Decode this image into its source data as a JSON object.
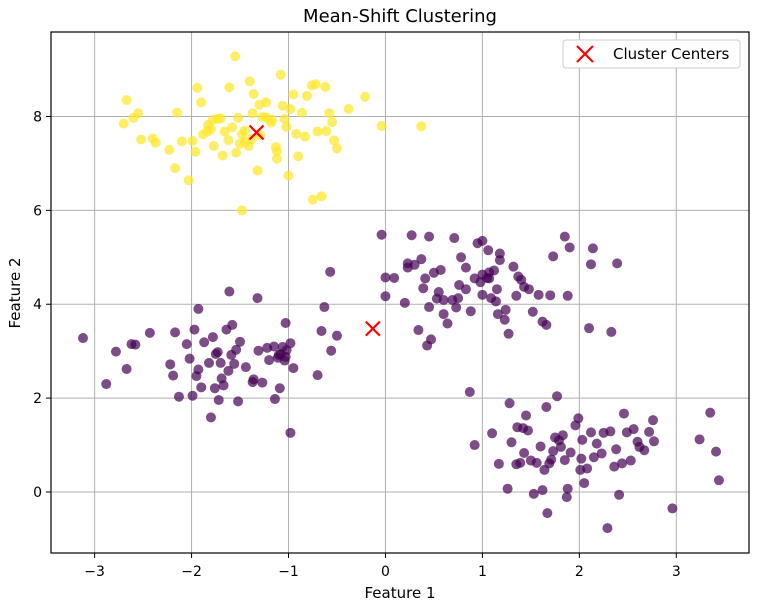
{
  "chart_data": {
    "type": "scatter",
    "title": "Mean-Shift Clustering",
    "xlabel": "Feature 1",
    "ylabel": "Feature 2",
    "xlim": [
      -3.45,
      3.75
    ],
    "ylim": [
      -1.3,
      9.8
    ],
    "xticks": [
      -3,
      -2,
      -1,
      0,
      1,
      2,
      3
    ],
    "yticks": [
      0,
      2,
      4,
      6,
      8
    ],
    "grid": true,
    "legend_location": "top-right",
    "legend": [
      {
        "label": "Cluster Centers",
        "marker": "x",
        "color": "#ff0000"
      }
    ],
    "colors": {
      "cluster_0": "#440154",
      "cluster_1": "#fde725",
      "centers": "#ff0000",
      "grid": "#b0b0b0"
    },
    "series": [
      {
        "cluster": 0,
        "points": [
          [
            -3.12,
            3.28
          ],
          [
            -2.88,
            2.3
          ],
          [
            -2.78,
            2.99
          ],
          [
            -2.67,
            2.62
          ],
          [
            -2.62,
            3.15
          ],
          [
            -2.58,
            3.14
          ],
          [
            -2.43,
            3.39
          ],
          [
            -2.22,
            2.72
          ],
          [
            -2.19,
            2.48
          ],
          [
            -2.17,
            3.4
          ],
          [
            -2.13,
            2.03
          ],
          [
            -2.05,
            3.15
          ],
          [
            -2.02,
            2.84
          ],
          [
            -1.99,
            2.05
          ],
          [
            -1.97,
            3.46
          ],
          [
            -1.95,
            2.47
          ],
          [
            -1.93,
            3.9
          ],
          [
            -1.93,
            2.61
          ],
          [
            -1.9,
            2.23
          ],
          [
            -1.87,
            3.19
          ],
          [
            -1.82,
            2.75
          ],
          [
            -1.8,
            1.59
          ],
          [
            -1.78,
            3.3
          ],
          [
            -1.76,
            2.21
          ],
          [
            -1.75,
            2.94
          ],
          [
            -1.73,
            2.98
          ],
          [
            -1.72,
            1.96
          ],
          [
            -1.7,
            2.75
          ],
          [
            -1.69,
            2.42
          ],
          [
            -1.67,
            2.27
          ],
          [
            -1.64,
            3.46
          ],
          [
            -1.62,
            2.58
          ],
          [
            -1.61,
            4.27
          ],
          [
            -1.59,
            2.92
          ],
          [
            -1.58,
            3.56
          ],
          [
            -1.56,
            2.73
          ],
          [
            -1.54,
            3.03
          ],
          [
            -1.52,
            1.93
          ],
          [
            -1.5,
            3.2
          ],
          [
            -1.44,
            2.66
          ],
          [
            -1.37,
            2.34
          ],
          [
            -1.36,
            2.4
          ],
          [
            -1.32,
            4.13
          ],
          [
            -1.31,
            3.01
          ],
          [
            -1.27,
            2.33
          ],
          [
            -1.22,
            3.07
          ],
          [
            -1.2,
            2.81
          ],
          [
            -1.15,
            3.1
          ],
          [
            -1.14,
            1.98
          ],
          [
            -1.11,
            2.86
          ],
          [
            -1.1,
            2.92
          ],
          [
            -1.09,
            2.21
          ],
          [
            -1.08,
            2.94
          ],
          [
            -1.06,
            3.09
          ],
          [
            -1.04,
            2.8
          ],
          [
            -1.03,
            2.88
          ],
          [
            -1.03,
            3.6
          ],
          [
            -1.02,
            3.02
          ],
          [
            -0.98,
            3.17
          ],
          [
            -0.98,
            1.26
          ],
          [
            -0.95,
            2.64
          ],
          [
            -0.7,
            2.49
          ],
          [
            -0.66,
            3.43
          ],
          [
            -0.63,
            3.94
          ],
          [
            -0.57,
            4.69
          ],
          [
            -0.56,
            3.01
          ],
          [
            -0.5,
            3.33
          ],
          [
            -0.04,
            5.48
          ],
          [
            0.0,
            4.57
          ],
          [
            0.0,
            4.17
          ],
          [
            0.09,
            4.56
          ],
          [
            0.2,
            4.03
          ],
          [
            0.23,
            4.87
          ],
          [
            0.23,
            4.78
          ],
          [
            0.27,
            5.47
          ],
          [
            0.3,
            4.84
          ],
          [
            0.34,
            3.45
          ],
          [
            0.37,
            4.96
          ],
          [
            0.39,
            4.34
          ],
          [
            0.41,
            4.55
          ],
          [
            0.43,
            3.12
          ],
          [
            0.45,
            5.44
          ],
          [
            0.45,
            3.94
          ],
          [
            0.47,
            3.25
          ],
          [
            0.5,
            4.67
          ],
          [
            0.53,
            4.12
          ],
          [
            0.55,
            4.26
          ],
          [
            0.57,
            4.73
          ],
          [
            0.6,
            3.79
          ],
          [
            0.6,
            4.09
          ],
          [
            0.64,
            3.59
          ],
          [
            0.69,
            4.09
          ],
          [
            0.71,
            5.41
          ],
          [
            0.73,
            3.93
          ],
          [
            0.75,
            4.13
          ],
          [
            0.76,
            4.41
          ],
          [
            0.78,
            5.0
          ],
          [
            0.83,
            4.78
          ],
          [
            0.83,
            4.32
          ],
          [
            0.88,
            3.85
          ],
          [
            0.92,
            4.55
          ],
          [
            0.95,
            5.3
          ],
          [
            0.98,
            4.47
          ],
          [
            1.0,
            4.63
          ],
          [
            1.0,
            5.35
          ],
          [
            1.0,
            4.2
          ],
          [
            1.05,
            4.56
          ],
          [
            1.06,
            5.15
          ],
          [
            1.07,
            4.55
          ],
          [
            1.07,
            4.68
          ],
          [
            1.09,
            4.13
          ],
          [
            1.12,
            4.72
          ],
          [
            1.14,
            4.06
          ],
          [
            1.15,
            4.32
          ],
          [
            1.16,
            3.79
          ],
          [
            1.18,
            5.08
          ],
          [
            1.18,
            4.94
          ],
          [
            1.23,
            3.67
          ],
          [
            1.24,
            3.88
          ],
          [
            1.27,
            3.37
          ],
          [
            1.32,
            4.8
          ],
          [
            1.35,
            4.18
          ],
          [
            1.37,
            4.59
          ],
          [
            1.4,
            4.52
          ],
          [
            1.43,
            4.37
          ],
          [
            1.48,
            4.32
          ],
          [
            1.52,
            3.84
          ],
          [
            1.58,
            4.2
          ],
          [
            1.62,
            3.63
          ],
          [
            1.66,
            3.56
          ],
          [
            1.7,
            4.19
          ],
          [
            1.73,
            5.02
          ],
          [
            1.85,
            5.44
          ],
          [
            1.88,
            4.18
          ],
          [
            1.9,
            5.21
          ],
          [
            2.1,
            3.49
          ],
          [
            2.12,
            4.85
          ],
          [
            2.14,
            5.19
          ],
          [
            2.33,
            3.41
          ],
          [
            2.39,
            4.87
          ],
          [
            0.87,
            2.13
          ],
          [
            0.92,
            1.0
          ],
          [
            1.1,
            1.25
          ],
          [
            1.17,
            0.6
          ],
          [
            1.26,
            0.07
          ],
          [
            1.28,
            1.89
          ],
          [
            1.3,
            1.06
          ],
          [
            1.35,
            0.59
          ],
          [
            1.36,
            1.38
          ],
          [
            1.39,
            0.62
          ],
          [
            1.42,
            1.36
          ],
          [
            1.43,
            0.83
          ],
          [
            1.45,
            1.63
          ],
          [
            1.47,
            1.31
          ],
          [
            1.5,
            0.67
          ],
          [
            1.53,
            -0.04
          ],
          [
            1.56,
            0.62
          ],
          [
            1.6,
            0.97
          ],
          [
            1.62,
            0.04
          ],
          [
            1.64,
            0.47
          ],
          [
            1.66,
            1.81
          ],
          [
            1.67,
            -0.45
          ],
          [
            1.69,
            0.61
          ],
          [
            1.71,
            0.69
          ],
          [
            1.73,
            0.87
          ],
          [
            1.75,
            1.16
          ],
          [
            1.77,
            2.04
          ],
          [
            1.79,
            1.1
          ],
          [
            1.81,
            0.96
          ],
          [
            1.83,
            1.21
          ],
          [
            1.85,
            0.68
          ],
          [
            1.87,
            -0.11
          ],
          [
            1.88,
            0.07
          ],
          [
            1.91,
            0.84
          ],
          [
            1.96,
            1.42
          ],
          [
            1.99,
            1.57
          ],
          [
            2.01,
            0.47
          ],
          [
            2.02,
            0.71
          ],
          [
            2.03,
            1.11
          ],
          [
            2.05,
            0.19
          ],
          [
            2.08,
            0.5
          ],
          [
            2.12,
            1.27
          ],
          [
            2.15,
            0.74
          ],
          [
            2.18,
            1.03
          ],
          [
            2.23,
            0.82
          ],
          [
            2.25,
            1.26
          ],
          [
            2.29,
            -0.77
          ],
          [
            2.32,
            1.29
          ],
          [
            2.36,
            0.54
          ],
          [
            2.38,
            0.91
          ],
          [
            2.41,
            -0.06
          ],
          [
            2.44,
            0.61
          ],
          [
            2.46,
            1.67
          ],
          [
            2.49,
            1.27
          ],
          [
            2.53,
            0.67
          ],
          [
            2.56,
            1.34
          ],
          [
            2.6,
            1.07
          ],
          [
            2.62,
            0.96
          ],
          [
            2.67,
            0.89
          ],
          [
            2.72,
            1.28
          ],
          [
            2.76,
            1.53
          ],
          [
            2.77,
            1.08
          ],
          [
            2.96,
            -0.35
          ],
          [
            3.24,
            1.12
          ],
          [
            3.35,
            1.69
          ],
          [
            3.41,
            0.86
          ],
          [
            3.44,
            0.25
          ]
        ]
      },
      {
        "cluster": 1,
        "points": [
          [
            -2.67,
            8.35
          ],
          [
            -2.6,
            7.97
          ],
          [
            -2.52,
            7.51
          ],
          [
            -2.17,
            6.9
          ],
          [
            -2.1,
            7.47
          ],
          [
            -2.03,
            6.64
          ],
          [
            -1.94,
            8.61
          ],
          [
            -1.9,
            8.3
          ],
          [
            -1.84,
            7.68
          ],
          [
            -1.8,
            7.73
          ],
          [
            -1.77,
            7.37
          ],
          [
            -1.73,
            7.95
          ],
          [
            -1.68,
            7.17
          ],
          [
            -1.61,
            8.62
          ],
          [
            -1.55,
            9.28
          ],
          [
            -1.52,
            7.97
          ],
          [
            -1.48,
            7.62
          ],
          [
            -1.45,
            7.46
          ],
          [
            -1.4,
            8.75
          ],
          [
            -1.37,
            8.07
          ],
          [
            -1.32,
            6.85
          ],
          [
            -1.29,
            7.6
          ],
          [
            -1.23,
            8.3
          ],
          [
            -1.17,
            7.93
          ],
          [
            -1.12,
            7.1
          ],
          [
            -1.08,
            8.89
          ],
          [
            -1.04,
            7.95
          ],
          [
            -1.0,
            6.74
          ],
          [
            -0.95,
            8.47
          ],
          [
            -0.92,
            7.63
          ],
          [
            -0.86,
            8.08
          ],
          [
            -0.81,
            8.44
          ],
          [
            -0.76,
            8.66
          ],
          [
            -0.7,
            7.68
          ],
          [
            -0.66,
            6.3
          ],
          [
            -0.61,
            7.69
          ],
          [
            -0.55,
            7.88
          ],
          [
            -0.5,
            7.32
          ],
          [
            -0.38,
            8.16
          ],
          [
            -0.21,
            8.42
          ],
          [
            -0.04,
            7.8
          ],
          [
            0.37,
            7.79
          ],
          [
            -1.48,
            6.0
          ],
          [
            -0.75,
            6.23
          ],
          [
            -2.55,
            8.07
          ],
          [
            -2.37,
            7.44
          ],
          [
            -2.23,
            7.29
          ],
          [
            -2.15,
            8.08
          ],
          [
            -1.99,
            7.48
          ],
          [
            -1.83,
            7.82
          ],
          [
            -1.78,
            7.93
          ],
          [
            -1.62,
            7.5
          ],
          [
            -1.58,
            7.77
          ],
          [
            -1.54,
            7.23
          ],
          [
            -1.45,
            7.7
          ],
          [
            -1.41,
            7.37
          ],
          [
            -1.36,
            8.48
          ],
          [
            -1.27,
            7.99
          ],
          [
            -1.18,
            7.87
          ],
          [
            -1.13,
            7.35
          ],
          [
            -1.06,
            8.23
          ],
          [
            -1.02,
            7.78
          ],
          [
            -0.9,
            7.15
          ],
          [
            -0.83,
            7.57
          ],
          [
            -0.72,
            8.69
          ],
          [
            -0.62,
            8.63
          ],
          [
            -0.58,
            8.07
          ],
          [
            -0.53,
            7.49
          ],
          [
            -1.7,
            7.96
          ],
          [
            -1.3,
            8.25
          ],
          [
            -2.7,
            7.85
          ],
          [
            -1.96,
            7.25
          ],
          [
            -1.66,
            7.68
          ],
          [
            -1.12,
            7.26
          ],
          [
            -1.38,
            7.52
          ],
          [
            -1.23,
            7.98
          ],
          [
            -0.98,
            8.16
          ],
          [
            -1.5,
            7.42
          ],
          [
            -1.88,
            7.62
          ],
          [
            -2.4,
            7.53
          ]
        ]
      }
    ],
    "centers": [
      [
        -1.33,
        7.66
      ],
      [
        -0.13,
        3.48
      ]
    ]
  }
}
